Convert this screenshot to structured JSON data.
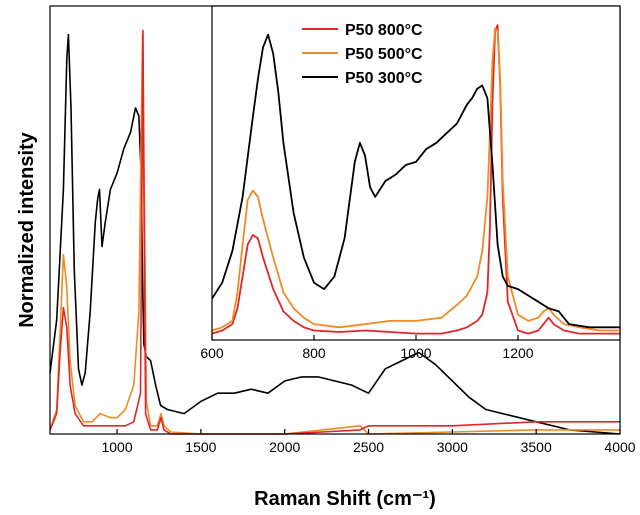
{
  "chart_data": [
    {
      "type": "line",
      "xlabel": "Raman Shift (cm⁻¹)",
      "ylabel": "Normalized intensity",
      "xlim": [
        600,
        4000
      ],
      "ylim": [
        0,
        1.05
      ],
      "xticks": [
        "1000",
        "1500",
        "2000",
        "2500",
        "3000",
        "3500",
        "4000"
      ],
      "grid": false,
      "series": [
        {
          "name": "P50 300°C",
          "color": "#000000",
          "x": [
            600,
            640,
            680,
            700,
            710,
            725,
            745,
            770,
            790,
            810,
            840,
            870,
            885,
            895,
            910,
            930,
            960,
            1000,
            1040,
            1080,
            1110,
            1130,
            1145,
            1152,
            1160,
            1175,
            1200,
            1230,
            1260,
            1300,
            1400,
            1500,
            1600,
            1700,
            1800,
            1900,
            2000,
            2100,
            2200,
            2300,
            2400,
            2450,
            2500,
            2600,
            2700,
            2800,
            2900,
            3000,
            3100,
            3200,
            3300,
            3400,
            3500,
            3700,
            4000
          ],
          "y": [
            0.15,
            0.28,
            0.6,
            0.92,
            0.98,
            0.8,
            0.4,
            0.16,
            0.12,
            0.15,
            0.3,
            0.52,
            0.58,
            0.6,
            0.46,
            0.52,
            0.6,
            0.64,
            0.7,
            0.74,
            0.8,
            0.78,
            0.62,
            0.38,
            0.22,
            0.19,
            0.18,
            0.12,
            0.07,
            0.06,
            0.05,
            0.08,
            0.1,
            0.1,
            0.11,
            0.1,
            0.13,
            0.14,
            0.14,
            0.13,
            0.12,
            0.11,
            0.1,
            0.16,
            0.18,
            0.2,
            0.17,
            0.13,
            0.09,
            0.06,
            0.05,
            0.04,
            0.03,
            0.01,
            0.0
          ]
        },
        {
          "name": "P50 500°C",
          "color": "#f08a24",
          "x": [
            600,
            640,
            660,
            680,
            700,
            720,
            750,
            800,
            850,
            900,
            960,
            1000,
            1050,
            1100,
            1130,
            1145,
            1152,
            1160,
            1175,
            1200,
            1240,
            1262,
            1280,
            1320,
            1500,
            2000,
            2450,
            2500,
            3000,
            3500,
            4000
          ],
          "y": [
            0.01,
            0.06,
            0.25,
            0.44,
            0.36,
            0.18,
            0.07,
            0.03,
            0.03,
            0.05,
            0.04,
            0.04,
            0.06,
            0.12,
            0.3,
            0.78,
            0.98,
            0.7,
            0.08,
            0.02,
            0.02,
            0.05,
            0.02,
            0.005,
            0.0,
            0.0,
            0.02,
            0.0,
            0.005,
            0.01,
            0.01
          ]
        },
        {
          "name": "P50 800°C",
          "color": "#e0262a",
          "x": [
            600,
            640,
            660,
            680,
            700,
            720,
            750,
            800,
            850,
            900,
            960,
            1000,
            1050,
            1100,
            1140,
            1150,
            1155,
            1160,
            1170,
            1200,
            1240,
            1262,
            1280,
            1320,
            1500,
            2000,
            2450,
            2500,
            3000,
            3500,
            4000
          ],
          "y": [
            0.01,
            0.05,
            0.2,
            0.31,
            0.26,
            0.12,
            0.05,
            0.02,
            0.02,
            0.02,
            0.02,
            0.02,
            0.02,
            0.03,
            0.1,
            0.7,
            0.99,
            0.6,
            0.05,
            0.01,
            0.01,
            0.04,
            0.01,
            0.0,
            0.0,
            0.0,
            0.01,
            0.02,
            0.02,
            0.03,
            0.03
          ]
        }
      ]
    },
    {
      "type": "line",
      "xlim": [
        600,
        1400
      ],
      "ylim": [
        0,
        1.05
      ],
      "xticks": [
        "600",
        "800",
        "1000",
        "1200"
      ],
      "legend": "top-left",
      "series": [
        {
          "name": "P50 800°C",
          "color": "#e0262a",
          "x": [
            600,
            620,
            640,
            650,
            660,
            670,
            680,
            690,
            700,
            720,
            740,
            760,
            780,
            800,
            850,
            900,
            950,
            1000,
            1050,
            1080,
            1100,
            1120,
            1130,
            1140,
            1145,
            1150,
            1155,
            1160,
            1165,
            1170,
            1180,
            1200,
            1220,
            1240,
            1250,
            1260,
            1270,
            1290,
            1320,
            1360,
            1400
          ],
          "y": [
            0.02,
            0.03,
            0.05,
            0.1,
            0.2,
            0.3,
            0.33,
            0.32,
            0.26,
            0.16,
            0.09,
            0.06,
            0.04,
            0.03,
            0.025,
            0.03,
            0.025,
            0.02,
            0.02,
            0.03,
            0.04,
            0.06,
            0.08,
            0.15,
            0.35,
            0.75,
            0.97,
            0.99,
            0.8,
            0.45,
            0.12,
            0.03,
            0.02,
            0.03,
            0.05,
            0.07,
            0.05,
            0.03,
            0.02,
            0.02,
            0.02
          ]
        },
        {
          "name": "P50 500°C",
          "color": "#f08a24",
          "x": [
            600,
            620,
            640,
            650,
            660,
            670,
            680,
            690,
            700,
            720,
            740,
            760,
            780,
            800,
            850,
            900,
            950,
            1000,
            1050,
            1080,
            1100,
            1120,
            1130,
            1140,
            1145,
            1150,
            1155,
            1160,
            1165,
            1170,
            1180,
            1200,
            1220,
            1240,
            1250,
            1260,
            1270,
            1290,
            1320,
            1360,
            1400
          ],
          "y": [
            0.03,
            0.04,
            0.06,
            0.15,
            0.3,
            0.44,
            0.47,
            0.45,
            0.38,
            0.26,
            0.15,
            0.1,
            0.07,
            0.05,
            0.04,
            0.05,
            0.06,
            0.06,
            0.07,
            0.11,
            0.14,
            0.2,
            0.28,
            0.45,
            0.65,
            0.88,
            0.98,
            0.97,
            0.82,
            0.5,
            0.2,
            0.08,
            0.06,
            0.07,
            0.09,
            0.1,
            0.08,
            0.05,
            0.04,
            0.03,
            0.03
          ]
        },
        {
          "name": "P50 300°C",
          "color": "#000000",
          "x": [
            600,
            620,
            640,
            660,
            680,
            690,
            700,
            710,
            720,
            730,
            740,
            760,
            780,
            800,
            820,
            840,
            860,
            880,
            890,
            900,
            910,
            920,
            940,
            960,
            980,
            1000,
            1020,
            1040,
            1060,
            1080,
            1100,
            1110,
            1120,
            1130,
            1140,
            1150,
            1160,
            1170,
            1180,
            1200,
            1220,
            1240,
            1260,
            1280,
            1300,
            1340,
            1400
          ],
          "y": [
            0.13,
            0.18,
            0.28,
            0.45,
            0.7,
            0.82,
            0.92,
            0.96,
            0.9,
            0.78,
            0.62,
            0.4,
            0.26,
            0.18,
            0.16,
            0.2,
            0.32,
            0.56,
            0.62,
            0.58,
            0.48,
            0.45,
            0.5,
            0.52,
            0.55,
            0.56,
            0.6,
            0.62,
            0.65,
            0.68,
            0.74,
            0.76,
            0.79,
            0.8,
            0.76,
            0.55,
            0.3,
            0.2,
            0.17,
            0.16,
            0.14,
            0.12,
            0.1,
            0.09,
            0.05,
            0.04,
            0.04
          ]
        }
      ]
    }
  ]
}
